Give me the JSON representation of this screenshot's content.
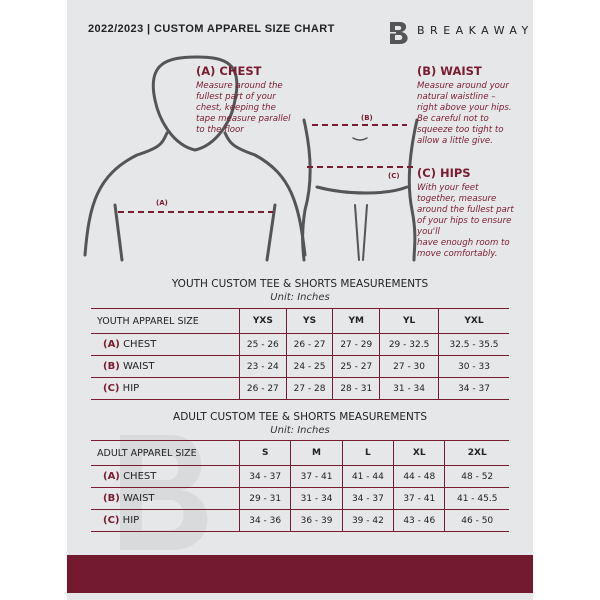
{
  "header": {
    "title": "2022/2023  |  CUSTOM APPAREL SIZE CHART",
    "brand": "BREAKAWAY"
  },
  "measures": {
    "chest": {
      "title": "(A) CHEST",
      "desc": [
        "Measure around the",
        "fullest part of your",
        "chest, keeping the",
        "tape measure parallel",
        "to the floor"
      ],
      "marker": "(A)"
    },
    "waist": {
      "title": "(B) WAIST",
      "desc": [
        "Measure around your",
        "natural waistline –",
        "right above your hips.",
        "Be careful not to",
        "squeeze too tight to",
        "allow a little give."
      ],
      "marker": "(B)"
    },
    "hips": {
      "title": "(C) HIPS",
      "desc": [
        "With your feet",
        "together, measure",
        "around the fullest part",
        "of your hips to ensure",
        "you'll",
        "have enough room to",
        "move comfortably."
      ],
      "marker": "(C)"
    }
  },
  "youth": {
    "title": "YOUTH CUSTOM TEE & SHORTS MEASUREMENTS",
    "unit": "Unit: Inches",
    "header": [
      "YOUTH APPAREL SIZE",
      "YXS",
      "YS",
      "YM",
      "YL",
      "YXL"
    ],
    "rows": [
      {
        "code": "(A)",
        "name": "CHEST",
        "values": [
          "25 - 26",
          "26 - 27",
          "27 - 29",
          "29 - 32.5",
          "32.5 - 35.5"
        ]
      },
      {
        "code": "(B)",
        "name": "WAIST",
        "values": [
          "23 - 24",
          "24 - 25",
          "25 - 27",
          "27 - 30",
          "30 - 33"
        ]
      },
      {
        "code": "(C)",
        "name": "HIP",
        "values": [
          "26 - 27",
          "27 - 28",
          "28 - 31",
          "31 - 34",
          "34 - 37"
        ]
      }
    ]
  },
  "adult": {
    "title": "ADULT CUSTOM TEE & SHORTS MEASUREMENTS",
    "unit": "Unit: Inches",
    "header": [
      "ADULT APPAREL SIZE",
      "S",
      "M",
      "L",
      "XL",
      "2XL"
    ],
    "rows": [
      {
        "code": "(A)",
        "name": "CHEST",
        "values": [
          "34 - 37",
          "37 - 41",
          "41 - 44",
          "44 - 48",
          "48 - 52"
        ]
      },
      {
        "code": "(B)",
        "name": "WAIST",
        "values": [
          "29 - 31",
          "31 - 34",
          "34 - 37",
          "37 - 41",
          "41 - 45.5"
        ]
      },
      {
        "code": "(C)",
        "name": "HIP",
        "values": [
          "34 - 36",
          "36 - 39",
          "39 - 42",
          "43 - 46",
          "46 - 50"
        ]
      }
    ]
  },
  "colors": {
    "accent": "#741a2f",
    "panel": "#e6e7e9"
  }
}
